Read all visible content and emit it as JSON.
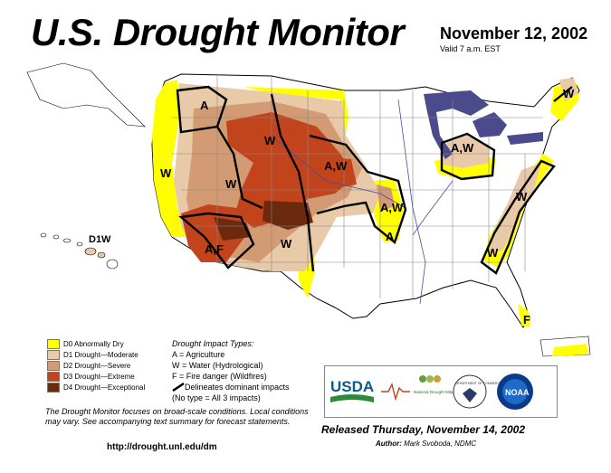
{
  "header": {
    "title": "U.S. Drought Monitor",
    "date": "November 12, 2002",
    "valid": "Valid 7 a.m. EST"
  },
  "legend": {
    "items": [
      {
        "label": "D0 Abnormally Dry",
        "color": "#ffff00"
      },
      {
        "label": "D1 Drought—Moderate",
        "color": "#e8c9a8"
      },
      {
        "label": "D2 Drought—Severe",
        "color": "#d39b73"
      },
      {
        "label": "D3 Drought—Extreme",
        "color": "#c2441c"
      },
      {
        "label": "D4 Drought—Exceptional",
        "color": "#6b2a0e"
      }
    ]
  },
  "impacts": {
    "heading": "Drought Impact Types:",
    "types": [
      "A = Agriculture",
      "W = Water (Hydrological)",
      "F = Fire danger (Wildfires)"
    ],
    "delineates": "Delineates dominant impacts",
    "none": "(No type = All 3 impacts)"
  },
  "note": "The Drought Monitor focuses on broad-scale conditions. Local conditions may vary. See accompanying text summary for forecast statements.",
  "url": "http://drought.unl.edu/dm",
  "released": "Released Thursday, November 14, 2002",
  "author": {
    "label": "Author:",
    "name": "Mark Svoboda, NDMC"
  },
  "logos": {
    "usda": "USDA",
    "ndmc": "National Drought Mitigation Center",
    "doc": "DEPARTMENT OF COMMERCE",
    "noaa": "NOAA"
  },
  "map_labels": {
    "a_pnw": "A",
    "w_nw": "W",
    "w_ca": "W",
    "w_mt": "W",
    "w_nv": "W",
    "aw_ne": "A,W",
    "aw_mo": "A,W",
    "a_ok": "A",
    "w_tx": "W",
    "af_az": "A,F",
    "aw_mi": "A,W",
    "w_me": "W",
    "w_mid": "W",
    "w_se": "W",
    "f_fl": "F",
    "hawaii": "D1W"
  }
}
